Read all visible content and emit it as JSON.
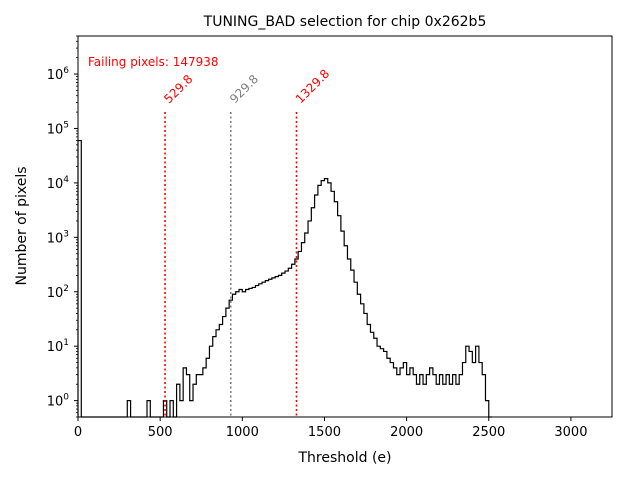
{
  "chart_data": {
    "type": "step-histogram",
    "title": "TUNING_BAD selection for chip 0x262b5",
    "xlabel": "Threshold (e)",
    "ylabel": "Number of pixels",
    "xlim": [
      0,
      3250
    ],
    "ylim": [
      0.5,
      5000000
    ],
    "yscale": "log",
    "xticks": [
      0,
      500,
      1000,
      1500,
      2000,
      2500,
      3000
    ],
    "xtick_labels": [
      "0",
      "500",
      "1000",
      "1500",
      "2000",
      "2500",
      "3000"
    ],
    "yticks": [
      1,
      10,
      100,
      1000,
      10000,
      100000,
      1000000
    ],
    "ytick_labels": [
      "10",
      "10",
      "10",
      "10",
      "10",
      "10",
      "10"
    ],
    "ytick_exponents": [
      "0",
      "1",
      "2",
      "3",
      "4",
      "5",
      "6"
    ],
    "annotation": {
      "text": "Failing pixels: 147938",
      "color": "#ff0000"
    },
    "vlines": [
      {
        "x": 529.8,
        "label": "529.8",
        "color": "#ff0000"
      },
      {
        "x": 929.8,
        "label": "929.8",
        "color": "#808080"
      },
      {
        "x": 1329.8,
        "label": "1329.8",
        "color": "#ff0000"
      }
    ],
    "bin_width": 20,
    "points": [
      [
        0,
        60000
      ],
      [
        20,
        0.5
      ],
      [
        300,
        1
      ],
      [
        320,
        0.5
      ],
      [
        360,
        0.5
      ],
      [
        420,
        1
      ],
      [
        440,
        0.5
      ],
      [
        520,
        1
      ],
      [
        540,
        0.5
      ],
      [
        560,
        1
      ],
      [
        580,
        0.5
      ],
      [
        600,
        2
      ],
      [
        620,
        1
      ],
      [
        640,
        4
      ],
      [
        660,
        3
      ],
      [
        680,
        1
      ],
      [
        700,
        2
      ],
      [
        720,
        3
      ],
      [
        740,
        3
      ],
      [
        760,
        4
      ],
      [
        780,
        6
      ],
      [
        800,
        10
      ],
      [
        820,
        15
      ],
      [
        840,
        20
      ],
      [
        860,
        25
      ],
      [
        880,
        35
      ],
      [
        900,
        50
      ],
      [
        920,
        70
      ],
      [
        940,
        90
      ],
      [
        960,
        100
      ],
      [
        980,
        110
      ],
      [
        1000,
        100
      ],
      [
        1020,
        110
      ],
      [
        1040,
        115
      ],
      [
        1060,
        120
      ],
      [
        1080,
        130
      ],
      [
        1100,
        140
      ],
      [
        1120,
        150
      ],
      [
        1140,
        160
      ],
      [
        1160,
        170
      ],
      [
        1180,
        180
      ],
      [
        1200,
        190
      ],
      [
        1220,
        200
      ],
      [
        1240,
        220
      ],
      [
        1260,
        240
      ],
      [
        1280,
        270
      ],
      [
        1300,
        320
      ],
      [
        1320,
        400
      ],
      [
        1340,
        550
      ],
      [
        1360,
        800
      ],
      [
        1380,
        1200
      ],
      [
        1400,
        2000
      ],
      [
        1420,
        3500
      ],
      [
        1440,
        6000
      ],
      [
        1460,
        9000
      ],
      [
        1480,
        11000
      ],
      [
        1500,
        12000
      ],
      [
        1520,
        10000
      ],
      [
        1540,
        7000
      ],
      [
        1560,
        4500
      ],
      [
        1580,
        2500
      ],
      [
        1600,
        1300
      ],
      [
        1620,
        700
      ],
      [
        1640,
        400
      ],
      [
        1660,
        250
      ],
      [
        1680,
        150
      ],
      [
        1700,
        90
      ],
      [
        1720,
        60
      ],
      [
        1740,
        40
      ],
      [
        1760,
        25
      ],
      [
        1780,
        18
      ],
      [
        1800,
        14
      ],
      [
        1820,
        10
      ],
      [
        1840,
        9
      ],
      [
        1860,
        8
      ],
      [
        1880,
        6
      ],
      [
        1900,
        5
      ],
      [
        1920,
        4
      ],
      [
        1940,
        3
      ],
      [
        1960,
        4
      ],
      [
        1980,
        5
      ],
      [
        2000,
        3
      ],
      [
        2020,
        4
      ],
      [
        2040,
        3
      ],
      [
        2060,
        2
      ],
      [
        2080,
        3
      ],
      [
        2100,
        2
      ],
      [
        2120,
        3
      ],
      [
        2140,
        4
      ],
      [
        2160,
        3
      ],
      [
        2180,
        2
      ],
      [
        2200,
        3
      ],
      [
        2220,
        2
      ],
      [
        2240,
        3
      ],
      [
        2260,
        2
      ],
      [
        2280,
        3
      ],
      [
        2300,
        2
      ],
      [
        2320,
        3
      ],
      [
        2340,
        5
      ],
      [
        2360,
        10
      ],
      [
        2380,
        8
      ],
      [
        2400,
        5
      ],
      [
        2420,
        10
      ],
      [
        2440,
        5
      ],
      [
        2460,
        3
      ],
      [
        2480,
        1
      ],
      [
        2500,
        0.5
      ]
    ]
  }
}
